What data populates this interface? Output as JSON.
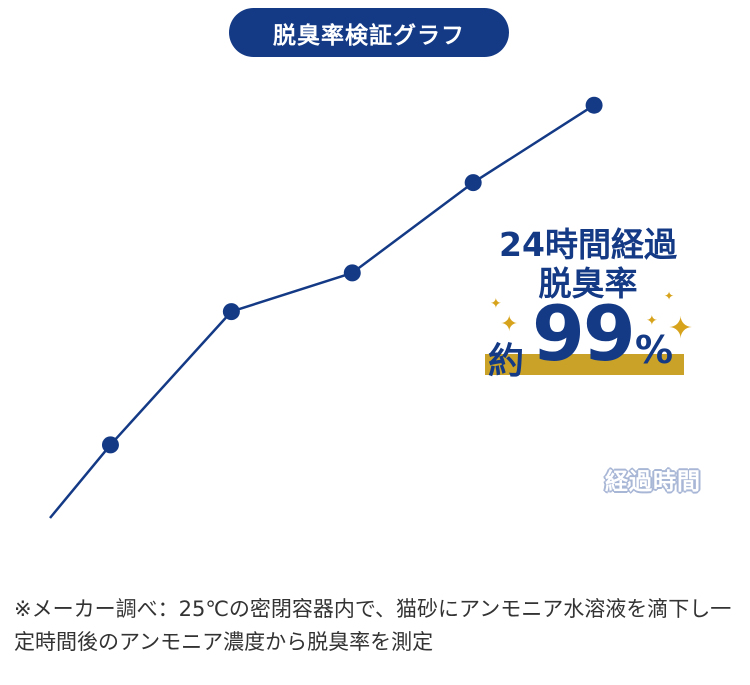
{
  "title": "脱臭率検証グラフ",
  "callout": {
    "line1": "24時間経過",
    "line2": "脱臭率",
    "prefix": "約",
    "value": "99",
    "unit": "%"
  },
  "note": "※メーカー調べ：25℃の密閉容器内で、猫砂にアンモニア水溶液を滴下し一定時間後のアンモニア濃度から脱臭率を測定",
  "colors": {
    "primary": "#143a86",
    "gold": "#c9a227",
    "axis_label": "#a9b7d6"
  },
  "chart_data": {
    "type": "line",
    "title": "脱臭率検証グラフ",
    "xlabel": "経過時間",
    "ylabel": "",
    "x": [
      1,
      2,
      3,
      4,
      5
    ],
    "series": [
      {
        "values": [
          17,
          48,
          57,
          78,
          96
        ]
      }
    ],
    "line_start": {
      "x": 0.5,
      "y": 0
    },
    "xlim": [
      0.5,
      6
    ],
    "ylim": [
      0,
      100
    ],
    "grid": false,
    "legend": "none",
    "annotations": [
      "24時間経過 脱臭率 約99%"
    ]
  }
}
